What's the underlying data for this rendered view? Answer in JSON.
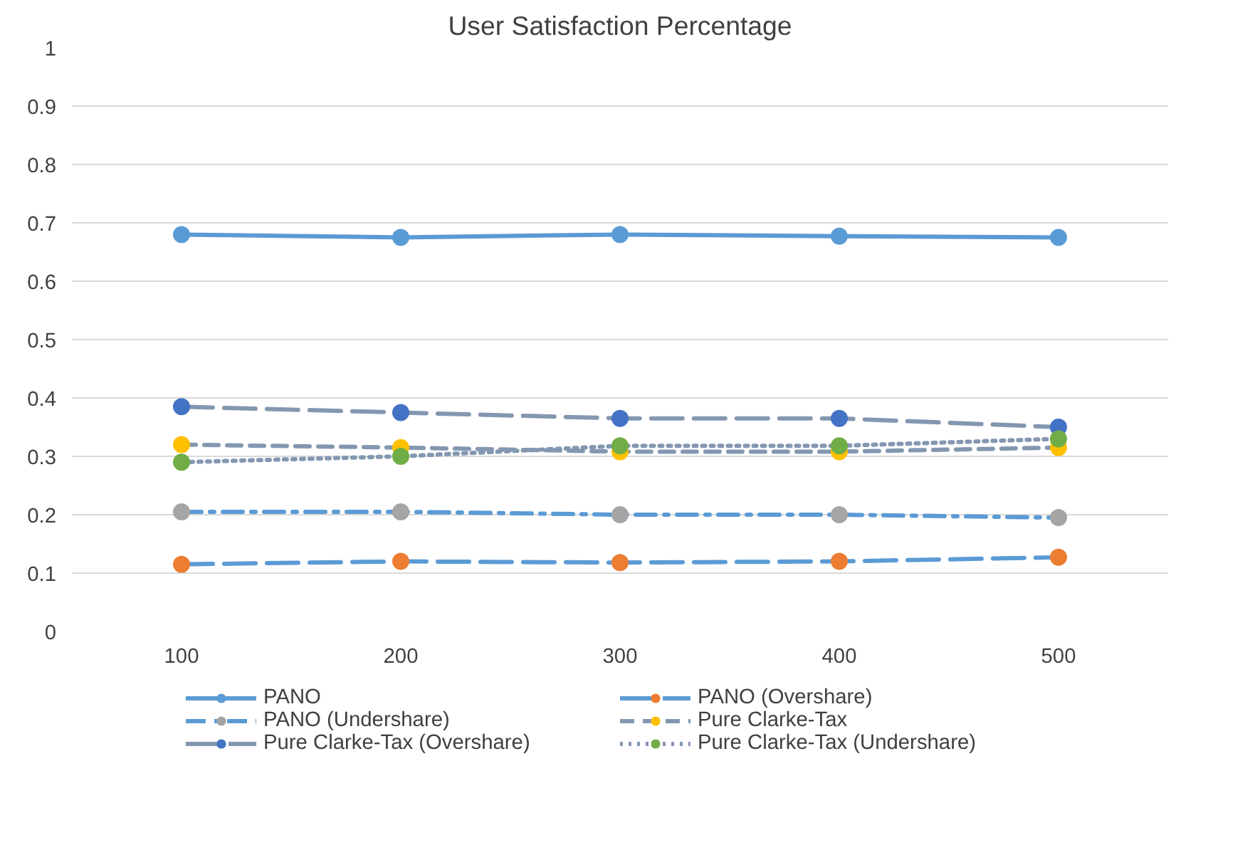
{
  "chart_data": {
    "type": "line",
    "title": "User Satisfaction Percentage",
    "categories": [
      "100",
      "200",
      "300",
      "400",
      "500"
    ],
    "ylim": [
      0,
      1
    ],
    "yticks": [
      0,
      0.1,
      0.2,
      0.3,
      0.4,
      0.5,
      0.6,
      0.7,
      0.8,
      0.9,
      1
    ],
    "grid": "y",
    "legend": "bottom",
    "marker": "circle",
    "series": [
      {
        "name": "PANO",
        "color": "#5b9bd5",
        "colors": [
          "#5b9bd5",
          "#5b9bd5",
          "#5b9bd5",
          "#5b9bd5",
          "#5b9bd5"
        ],
        "line_style": "solid",
        "values": [
          0.68,
          0.675,
          0.68,
          0.677,
          0.675
        ]
      },
      {
        "name": "PANO (Overshare)",
        "color": "#5b9bd5",
        "colors": [
          "#ed7d31",
          "#ed7d31",
          "#ed7d31",
          "#ed7d31",
          "#ed7d31"
        ],
        "line_style": "longdash",
        "values": [
          0.115,
          0.12,
          0.118,
          0.12,
          0.127
        ]
      },
      {
        "name": "PANO (Undershare)",
        "color": "#5b9bd5",
        "colors": [
          "#a5a5a5",
          "#a5a5a5",
          "#a5a5a5",
          "#a5a5a5",
          "#a5a5a5"
        ],
        "line_style": "dashdot",
        "values": [
          0.205,
          0.205,
          0.2,
          0.2,
          0.195
        ]
      },
      {
        "name": "Pure Clarke-Tax",
        "color": "#8497b0",
        "colors": [
          "#ffc000",
          "#ffc000",
          "#ffc000",
          "#ffc000",
          "#ffc000"
        ],
        "line_style": "dashed",
        "values": [
          0.32,
          0.315,
          0.308,
          0.308,
          0.315
        ]
      },
      {
        "name": "Pure Clarke-Tax (Overshare)",
        "color": "#8497b0",
        "colors": [
          "#4472c4",
          "#4472c4",
          "#4472c4",
          "#4472c4",
          "#4472c4"
        ],
        "line_style": "longdash",
        "values": [
          0.385,
          0.375,
          0.365,
          0.365,
          0.35
        ]
      },
      {
        "name": "Pure Clarke-Tax (Undershare)",
        "color": "#8497b0",
        "colors": [
          "#70ad47",
          "#70ad47",
          "#70ad47",
          "#70ad47",
          "#70ad47"
        ],
        "line_style": "dotted",
        "values": [
          0.29,
          0.3,
          0.318,
          0.318,
          0.33
        ]
      }
    ]
  }
}
